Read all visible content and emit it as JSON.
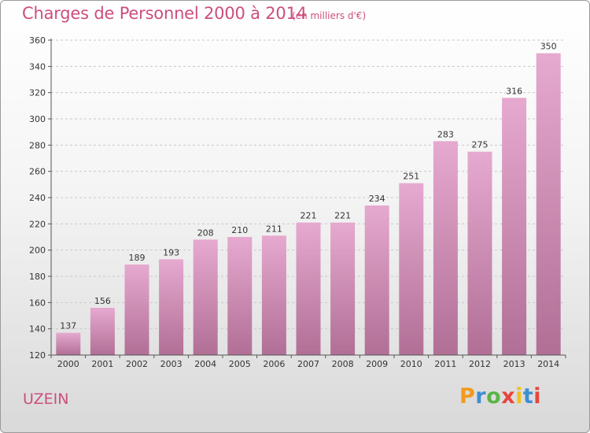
{
  "header": {
    "title": "Charges de Personnel 2000 à 2014",
    "subtitle": "(en milliers d'€)"
  },
  "footer": {
    "place": "UZEIN",
    "logo_text": "Proxiti",
    "logo_colors": [
      "#f29a1c",
      "#3f8fd0",
      "#5ab546",
      "#e8453c",
      "#f2c11c",
      "#3f8fd0",
      "#e8453c"
    ]
  },
  "chart_data": {
    "type": "bar",
    "categories": [
      "2000",
      "2001",
      "2002",
      "2003",
      "2004",
      "2005",
      "2006",
      "2007",
      "2008",
      "2009",
      "2010",
      "2011",
      "2012",
      "2013",
      "2014"
    ],
    "values": [
      137,
      156,
      189,
      193,
      208,
      210,
      211,
      221,
      221,
      234,
      251,
      283,
      275,
      316,
      350
    ],
    "ylim": [
      120,
      360
    ],
    "yticks": [
      120,
      140,
      160,
      180,
      200,
      220,
      240,
      260,
      280,
      300,
      320,
      340,
      360
    ],
    "grid": true,
    "bar_color_top": "#e6a9cf",
    "bar_color_bottom": "#b16f96"
  }
}
